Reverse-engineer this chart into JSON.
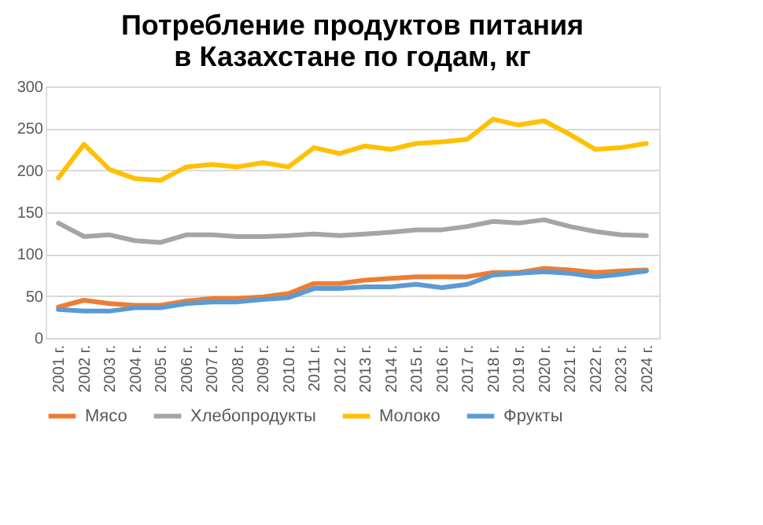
{
  "chart_data": {
    "type": "line",
    "title": "Потребление продуктов питания в Казахстане по годам, кг",
    "categories": [
      "2001 г.",
      "2002 г.",
      "2003 г.",
      "2004 г.",
      "2005 г.",
      "2006 г.",
      "2007 г.",
      "2008 г.",
      "2009 г.",
      "2010 г.",
      "2011 г.",
      "2012 г.",
      "2013 г.",
      "2014 г.",
      "2015 г.",
      "2016 г.",
      "2017 г.",
      "2018 г.",
      "2019 г.",
      "2020 г.",
      "2021 г.",
      "2022 г.",
      "2023 г.",
      "2024 г."
    ],
    "series": [
      {
        "name": "Мясо",
        "color": "#ed7d31",
        "values": [
          37,
          45,
          41,
          39,
          39,
          44,
          47,
          47,
          49,
          53,
          65,
          65,
          69,
          71,
          73,
          73,
          73,
          78,
          78,
          83,
          81,
          78,
          80,
          81
        ]
      },
      {
        "name": "Хлебопродукты",
        "color": "#a5a5a5",
        "values": [
          137,
          121,
          123,
          116,
          114,
          123,
          123,
          121,
          121,
          122,
          124,
          122,
          124,
          126,
          129,
          129,
          133,
          139,
          137,
          141,
          133,
          127,
          123,
          122
        ]
      },
      {
        "name": "Молоко",
        "color": "#ffc000",
        "values": [
          191,
          231,
          201,
          190,
          188,
          204,
          207,
          204,
          209,
          204,
          227,
          220,
          229,
          225,
          232,
          234,
          237,
          261,
          254,
          259,
          243,
          225,
          227,
          232
        ]
      },
      {
        "name": "Фрукты",
        "color": "#5b9bd5",
        "values": [
          34,
          32,
          32,
          36,
          36,
          41,
          43,
          43,
          46,
          48,
          59,
          59,
          61,
          61,
          64,
          60,
          64,
          75,
          77,
          79,
          77,
          73,
          76,
          80
        ]
      }
    ],
    "ylim": [
      0,
      300
    ],
    "yticks": [
      0,
      50,
      100,
      150,
      200,
      250,
      300
    ],
    "grid": "y",
    "legend": "bottom",
    "marker": "none",
    "line_style": "solid"
  }
}
